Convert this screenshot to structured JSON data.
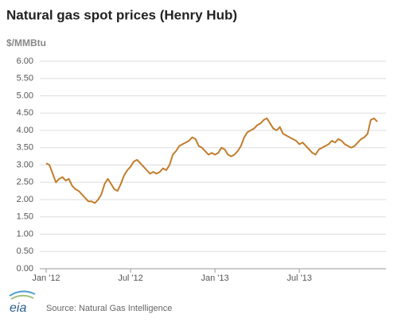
{
  "chart_data": {
    "type": "line",
    "title": "Natural gas spot prices (Henry Hub)",
    "y_label": "$/MMBtu",
    "source": "Source: Natural Gas Intelligence",
    "logo": "eia",
    "categories": [
      "Jan '12",
      null,
      null,
      null,
      null,
      null,
      null,
      null,
      null,
      null,
      null,
      null,
      null,
      null,
      null,
      null,
      null,
      null,
      null,
      null,
      null,
      null,
      null,
      null,
      null,
      null,
      "Jul '12",
      null,
      null,
      null,
      null,
      null,
      null,
      null,
      null,
      null,
      null,
      null,
      null,
      null,
      null,
      null,
      null,
      null,
      null,
      null,
      null,
      null,
      null,
      null,
      null,
      null,
      "Jan '13",
      null,
      null,
      null,
      null,
      null,
      null,
      null,
      null,
      null,
      null,
      null,
      null,
      null,
      null,
      null,
      null,
      null,
      null,
      null,
      null,
      null,
      null,
      null,
      null,
      null,
      "Jul '13",
      null,
      null,
      null,
      null,
      null,
      null,
      null,
      null,
      null,
      null,
      null,
      null,
      null,
      null,
      null,
      null,
      null,
      null,
      null,
      null,
      null,
      null,
      null,
      null
    ],
    "values": [
      3.05,
      3.0,
      2.75,
      2.5,
      2.6,
      2.65,
      2.55,
      2.6,
      2.4,
      2.3,
      2.25,
      2.15,
      2.05,
      1.95,
      1.95,
      1.9,
      2.0,
      2.15,
      2.45,
      2.6,
      2.45,
      2.3,
      2.25,
      2.45,
      2.7,
      2.85,
      2.95,
      3.1,
      3.15,
      3.05,
      2.95,
      2.85,
      2.75,
      2.8,
      2.75,
      2.8,
      2.9,
      2.85,
      3.0,
      3.3,
      3.4,
      3.55,
      3.6,
      3.65,
      3.7,
      3.8,
      3.75,
      3.55,
      3.5,
      3.4,
      3.3,
      3.35,
      3.3,
      3.35,
      3.5,
      3.45,
      3.3,
      3.25,
      3.3,
      3.4,
      3.55,
      3.8,
      3.95,
      4.0,
      4.05,
      4.15,
      4.2,
      4.3,
      4.35,
      4.2,
      4.05,
      4.0,
      4.1,
      3.9,
      3.85,
      3.8,
      3.75,
      3.7,
      3.6,
      3.65,
      3.55,
      3.45,
      3.35,
      3.3,
      3.45,
      3.5,
      3.55,
      3.6,
      3.7,
      3.65,
      3.75,
      3.7,
      3.6,
      3.55,
      3.5,
      3.55,
      3.65,
      3.75,
      3.8,
      3.9,
      4.3,
      4.35,
      4.25
    ],
    "color": "#c27c2c",
    "grid": true,
    "ylim": [
      0,
      6
    ],
    "yticks": [
      {
        "value": 0,
        "label": "0.00"
      },
      {
        "value": 0.5,
        "label": "0.50"
      },
      {
        "value": 1,
        "label": "1.00"
      },
      {
        "value": 1.5,
        "label": "1.50"
      },
      {
        "value": 2,
        "label": "2.00"
      },
      {
        "value": 2.5,
        "label": "2.50"
      },
      {
        "value": 3,
        "label": "3.00"
      },
      {
        "value": 3.5,
        "label": "3.50"
      },
      {
        "value": 4,
        "label": "4.00"
      },
      {
        "value": 4.5,
        "label": "4.50"
      },
      {
        "value": 5,
        "label": "5.00"
      },
      {
        "value": 5.5,
        "label": "5.50"
      },
      {
        "value": 6,
        "label": "6.00"
      }
    ]
  }
}
